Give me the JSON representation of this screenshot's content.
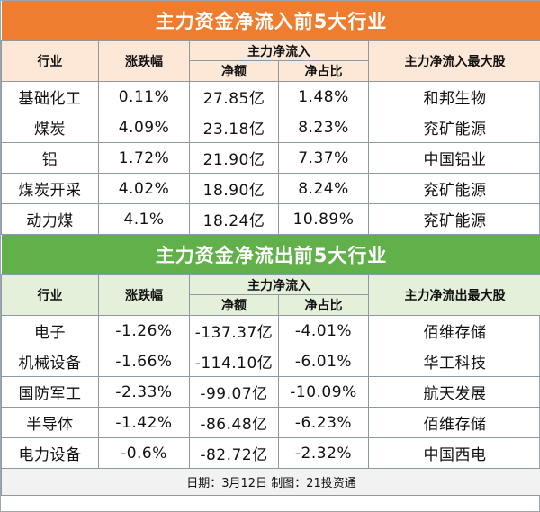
{
  "inflow": {
    "title": "主力资金净流入前5大行业",
    "headers": {
      "industry": "行业",
      "change": "涨跌幅",
      "net_group": "主力净流入",
      "net_amount": "净额",
      "net_ratio": "净占比",
      "top_stock": "主力净流入最大股"
    },
    "rows": [
      {
        "industry": "基础化工",
        "change": "0.11%",
        "net_amount": "27.85亿",
        "net_ratio": "1.48%",
        "top_stock": "和邦生物"
      },
      {
        "industry": "煤炭",
        "change": "4.09%",
        "net_amount": "23.18亿",
        "net_ratio": "8.23%",
        "top_stock": "兖矿能源"
      },
      {
        "industry": "铝",
        "change": "1.72%",
        "net_amount": "21.90亿",
        "net_ratio": "7.37%",
        "top_stock": "中国铝业"
      },
      {
        "industry": "煤炭开采",
        "change": "4.02%",
        "net_amount": "18.90亿",
        "net_ratio": "8.24%",
        "top_stock": "兖矿能源"
      },
      {
        "industry": "动力煤",
        "change": "4.1%",
        "net_amount": "18.24亿",
        "net_ratio": "10.89%",
        "top_stock": "兖矿能源"
      }
    ]
  },
  "outflow": {
    "title": "主力资金净流出前5大行业",
    "headers": {
      "industry": "行业",
      "change": "涨跌幅",
      "net_group": "主力净流入",
      "net_amount": "净额",
      "net_ratio": "净占比",
      "top_stock": "主力净流出最大股"
    },
    "rows": [
      {
        "industry": "电子",
        "change": "-1.26%",
        "net_amount": "-137.37亿",
        "net_ratio": "-4.01%",
        "top_stock": "佰维存储"
      },
      {
        "industry": "机械设备",
        "change": "-1.66%",
        "net_amount": "-114.10亿",
        "net_ratio": "-6.01%",
        "top_stock": "华工科技"
      },
      {
        "industry": "国防军工",
        "change": "-2.33%",
        "net_amount": "-99.07亿",
        "net_ratio": "-10.09%",
        "top_stock": "航天发展"
      },
      {
        "industry": "半导体",
        "change": "-1.42%",
        "net_amount": "-86.48亿",
        "net_ratio": "-6.23%",
        "top_stock": "佰维存储"
      },
      {
        "industry": "电力设备",
        "change": "-0.6%",
        "net_amount": "-82.72亿",
        "net_ratio": "-2.32%",
        "top_stock": "中国西电"
      }
    ]
  },
  "footer": "日期：3月12日 制图：21投资通",
  "colors": {
    "inflow_title_bg": "#ef7d2f",
    "inflow_header_bg": "#fde7d6",
    "outflow_title_bg": "#61b04a",
    "outflow_header_bg": "#e4f0d9"
  }
}
